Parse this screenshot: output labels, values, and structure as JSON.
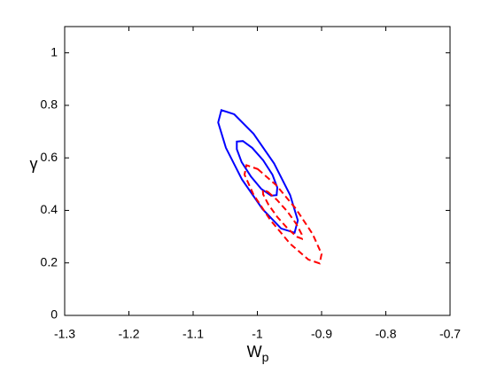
{
  "chart_data": {
    "type": "line",
    "xlabel": "W",
    "xlabel_subscript": "p",
    "ylabel": "γ",
    "xlim": [
      -1.3,
      -0.7
    ],
    "xticks": [
      -1.3,
      -1.2,
      -1.1,
      -1,
      -0.9,
      -0.8,
      -0.7
    ],
    "ylim": [
      0,
      1.1
    ],
    "yticks": [
      0,
      0.2,
      0.4,
      0.6,
      0.8,
      1
    ],
    "closed": true,
    "series": [
      {
        "color": "#0000ff",
        "dashed": false,
        "x": [
          -1.036,
          -1.006,
          -0.974,
          -0.949,
          -0.937,
          -0.942,
          -0.963,
          -0.992,
          -1.024,
          -1.049,
          -1.061,
          -1.056
        ],
        "values": [
          0.766,
          0.692,
          0.579,
          0.4585,
          0.362,
          0.315,
          0.331,
          0.405,
          0.518,
          0.6385,
          0.735,
          0.782
        ]
      },
      {
        "color": "#0000ff",
        "dashed": false,
        "x": [
          -1.0225,
          -1.008,
          -0.991,
          -0.9765,
          -0.969,
          -0.97,
          -0.9785,
          -0.994,
          -1.01,
          -1.0245,
          -1.032,
          -1.032
        ],
        "values": [
          0.664,
          0.638,
          0.591,
          0.536,
          0.487,
          0.458,
          0.456,
          0.482,
          0.529,
          0.584,
          0.633,
          0.662
        ]
      },
      {
        "color": "#ff0000",
        "dashed": true,
        "x": [
          -0.9995,
          -0.971,
          -0.94,
          -0.914,
          -0.9,
          -0.903,
          -0.9205,
          -0.949,
          -0.98,
          -1.006,
          -1.02,
          -1.017
        ],
        "values": [
          0.5575,
          0.497,
          0.406,
          0.31,
          0.234,
          0.198,
          0.2125,
          0.273,
          0.364,
          0.46,
          0.536,
          0.572
        ]
      },
      {
        "color": "#ff0000",
        "dashed": true,
        "x": [
          -0.9835,
          -0.9695,
          -0.953,
          -0.939,
          -0.931,
          -0.9305,
          -0.9385,
          -0.9525,
          -0.969,
          -0.983,
          -0.991,
          -0.9915
        ],
        "values": [
          0.4705,
          0.44,
          0.395,
          0.347,
          0.309,
          0.292,
          0.2995,
          0.33,
          0.375,
          0.423,
          0.461,
          0.478
        ]
      }
    ]
  }
}
